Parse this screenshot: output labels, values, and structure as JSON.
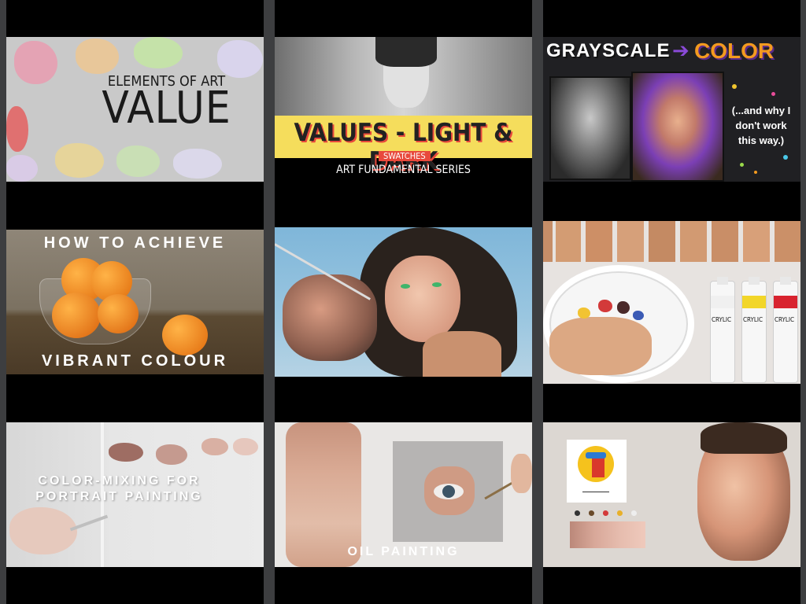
{
  "thumbnails": [
    {
      "line1": "ELEMENTS OF ART",
      "line2": "VALUE"
    },
    {
      "title": "VALUES - LIGHT & DARK",
      "badge": "SWATCHES",
      "subtitle": "ART FUNDAMENTAL SERIES"
    },
    {
      "title_left": "GRAYSCALE",
      "arrow": "➔",
      "title_right": "COLOR",
      "aside": "(...and why I don't work this way.)"
    },
    {
      "top": "HOW TO ACHIEVE",
      "bottom": "VIBRANT COLOUR"
    },
    {},
    {
      "tube_brand": "ARTISTS' ACRYLIC",
      "tube_short": "CRYLIC"
    },
    {
      "line1": "COLOR-MIXING FOR",
      "line2": "PORTRAIT PAINTING"
    },
    {
      "caption": "OIL PAINTING"
    },
    {}
  ],
  "colors": {
    "background": "#3d3e40",
    "column": "#000000",
    "value_title": "#1a1a1a",
    "banner_yellow": "#f5dd5c",
    "banner_red": "#e8493c",
    "color_orange": "#f39a1f",
    "arrow_purple": "#8a4ad8"
  }
}
